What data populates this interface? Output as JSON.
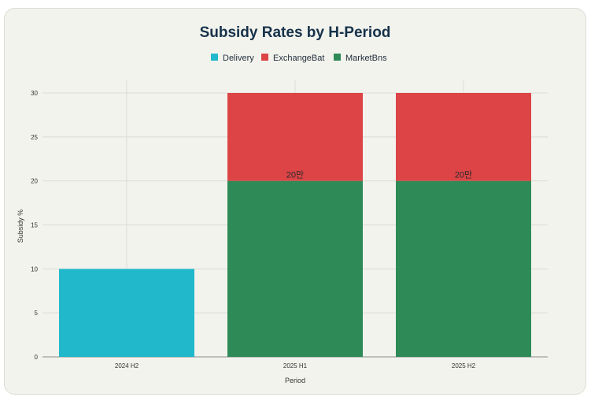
{
  "chart_data": {
    "type": "bar",
    "stacked": true,
    "title": "Subsidy Rates by H-Period",
    "xlabel": "Period",
    "ylabel": "Subsidy %",
    "ylim": [
      0,
      32
    ],
    "yticks": [
      0,
      5,
      10,
      15,
      20,
      25,
      30
    ],
    "categories": [
      "2024 H2",
      "2025 H1",
      "2025 H2"
    ],
    "series": [
      {
        "name": "Delivery",
        "color": "#21b8cc",
        "values": [
          10,
          0,
          0
        ]
      },
      {
        "name": "MarketBns",
        "color": "#2e8b57",
        "values": [
          0,
          20,
          20
        ]
      },
      {
        "name": "ExchangeBat",
        "color": "#dc4446",
        "values": [
          0,
          10,
          10
        ]
      }
    ],
    "legend": [
      {
        "name": "Delivery",
        "color": "#21b8cc"
      },
      {
        "name": "ExchangeBat",
        "color": "#dc4446"
      },
      {
        "name": "MarketBns",
        "color": "#2e8b57"
      }
    ],
    "annotations": [
      {
        "category": "2025 H1",
        "y": 20,
        "text": "20만"
      },
      {
        "category": "2025 H2",
        "y": 20,
        "text": "20만"
      }
    ]
  }
}
